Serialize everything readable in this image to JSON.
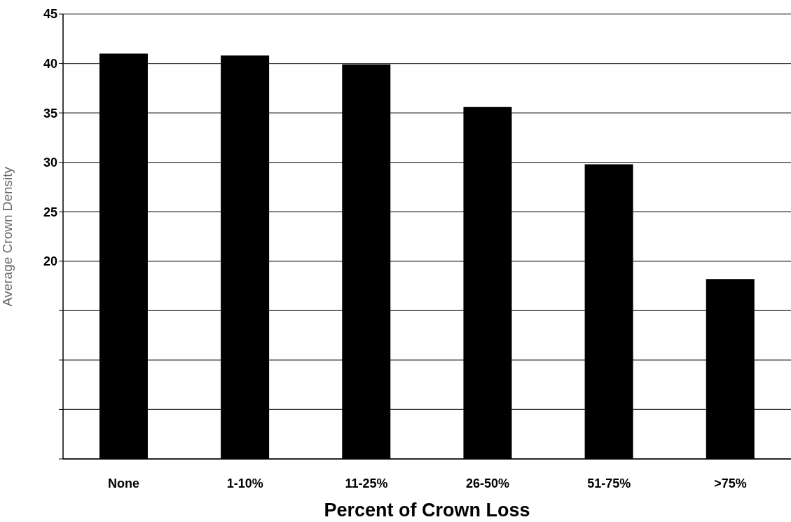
{
  "chart_data": {
    "type": "bar",
    "xlabel": "Percent of Crown Loss",
    "ylabel": "Average Crown Density",
    "categories": [
      "None",
      "1-10%",
      "11-25%",
      "26-50%",
      "51-75%",
      ">75%"
    ],
    "values": [
      41.0,
      40.8,
      39.9,
      35.6,
      29.8,
      18.2
    ],
    "color": "#000000",
    "ylim": [
      0,
      45
    ],
    "yticks": [
      {
        "value": 0,
        "label": null
      },
      {
        "value": 5,
        "label": null
      },
      {
        "value": 10,
        "label": null
      },
      {
        "value": 15,
        "label": null
      },
      20,
      25,
      30,
      35,
      40,
      45
    ],
    "grid": "y"
  }
}
